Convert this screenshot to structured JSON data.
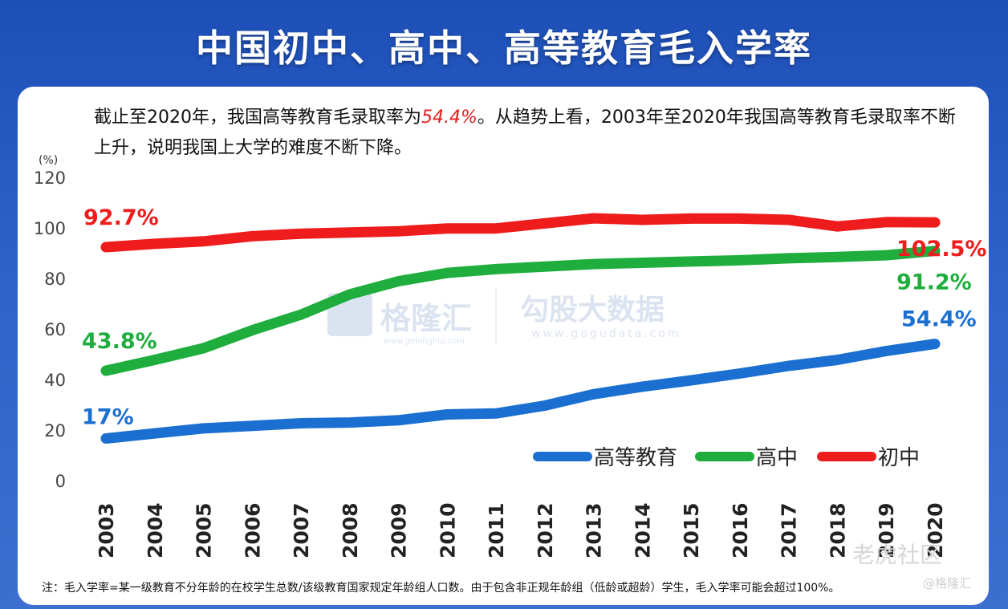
{
  "title": "中国初中、高中、高等教育毛入学率",
  "description": {
    "part1": "截止至2020年，我国高等教育毛录取率为",
    "highlight": "54.4%",
    "part2": "。从趋势上看，2003年至2020年我国高等教育毛录取率不断上升，说明我国上大学的难度不断下降。"
  },
  "note": "注：毛入学率=某一级教育不分年龄的在校学生总数/该级教育国家规定年龄组人口数。由于包含非正规年龄组（低龄或超龄）学生，毛入学率可能会超过100%。",
  "watermark": {
    "brand": "格隆汇",
    "brand_url": "www.gelonghui.com",
    "data_brand": "勾股大数据",
    "data_url": "www.gogudata.com",
    "corner": "老虎社区",
    "corner2": "@格隆汇"
  },
  "chart_data": {
    "type": "line",
    "title": "",
    "ylabel": "(%)",
    "xlabel": "",
    "ylim": [
      0,
      120
    ],
    "yticks": [
      0,
      20,
      40,
      60,
      80,
      100,
      120
    ],
    "categories": [
      "2003",
      "2004",
      "2005",
      "2006",
      "2007",
      "2008",
      "2009",
      "2010",
      "2011",
      "2012",
      "2013",
      "2014",
      "2015",
      "2016",
      "2017",
      "2018",
      "2019",
      "2020"
    ],
    "series": [
      {
        "name": "高等教育",
        "color": "#1a6fd1",
        "values": [
          17,
          19,
          21,
          22,
          23,
          23.3,
          24.2,
          26.5,
          26.9,
          30,
          34.5,
          37.5,
          40,
          42.7,
          45.7,
          48.1,
          51.6,
          54.4
        ],
        "start_label": "17%",
        "end_label": "54.4%"
      },
      {
        "name": "高中",
        "color": "#1fae3d",
        "values": [
          43.8,
          48.1,
          52.7,
          59.8,
          66,
          74,
          79.2,
          82.5,
          84,
          85,
          86,
          86.5,
          87,
          87.5,
          88.3,
          88.8,
          89.5,
          91.2
        ],
        "start_label": "43.8%",
        "end_label": "91.2%"
      },
      {
        "name": "初中",
        "color": "#ee1c1c",
        "values": [
          92.7,
          94,
          95,
          97,
          98,
          98.5,
          99,
          100.1,
          100.1,
          102.1,
          104.1,
          103.5,
          104,
          104,
          103.5,
          100.9,
          102.6,
          102.5
        ],
        "start_label": "92.7%",
        "end_label": "102.5%"
      }
    ],
    "legend_position": "bottom-right"
  }
}
